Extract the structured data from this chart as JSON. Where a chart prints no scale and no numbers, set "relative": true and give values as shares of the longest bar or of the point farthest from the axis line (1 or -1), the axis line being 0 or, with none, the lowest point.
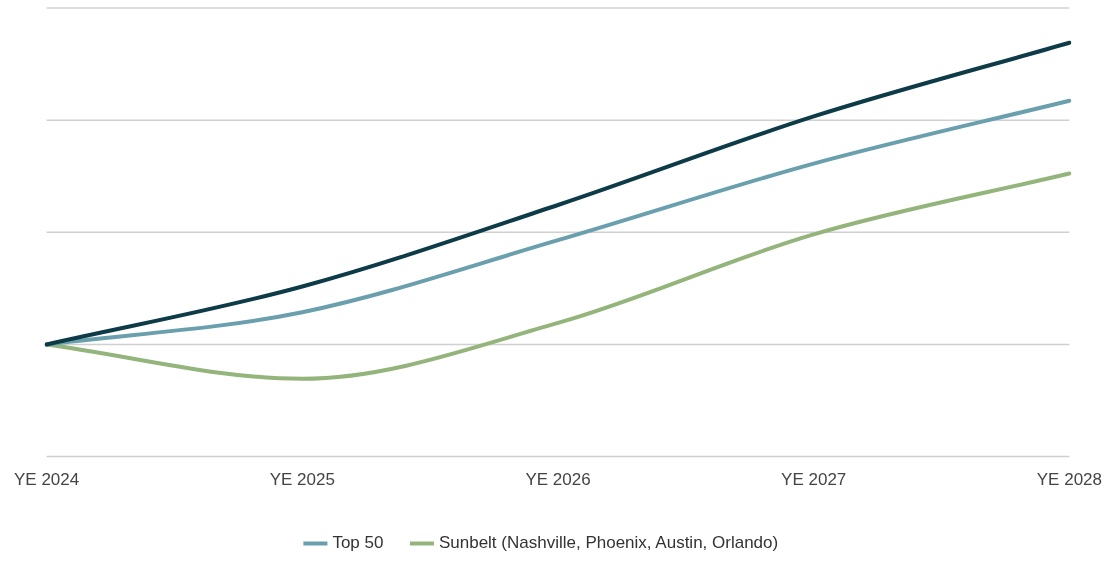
{
  "chart_data": {
    "type": "line",
    "relative": true,
    "categories": [
      "YE 2024",
      "YE 2025",
      "YE 2026",
      "YE 2027",
      "YE 2028"
    ],
    "series": [
      {
        "color": "#0d3b47",
        "values": [
          0.271,
          0.411,
          0.608,
          0.822,
          1.0
        ]
      },
      {
        "name": "Top 50",
        "color": "#6a9fae",
        "values": [
          0.271,
          0.349,
          0.523,
          0.708,
          0.86
        ]
      },
      {
        "name": "Sunbelt (Nashville, Phoenix, Austin, Orlando)",
        "color": "#93b47a",
        "values": [
          0.271,
          0.188,
          0.323,
          0.537,
          0.684
        ]
      }
    ],
    "ref_lines": [
      {
        "axis": "y",
        "value": 0,
        "color": "#d0d0d0"
      },
      {
        "axis": "y",
        "value": 0.271,
        "color": "#d0d0d0"
      },
      {
        "axis": "y",
        "value": 0.542,
        "color": "#d0d0d0"
      },
      {
        "axis": "y",
        "value": 0.813,
        "color": "#d0d0d0"
      },
      {
        "axis": "y",
        "value": 1.084,
        "color": "#d0d0d0"
      }
    ],
    "legend": "bottom",
    "marker": "none",
    "line_style": "solid"
  }
}
